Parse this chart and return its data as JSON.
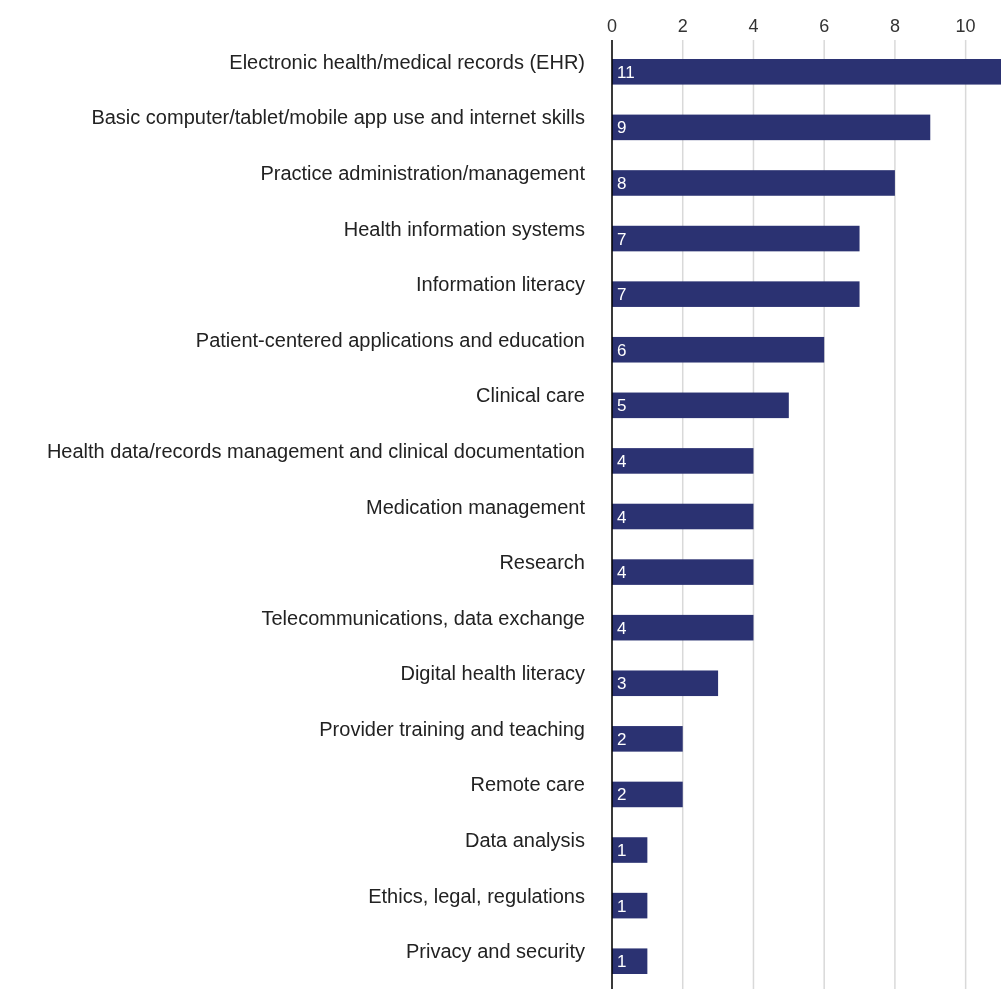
{
  "chart_data": {
    "type": "bar",
    "orientation": "horizontal",
    "categories": [
      "Electronic health/medical records (EHR)",
      "Basic computer/tablet/mobile app use and internet skills",
      "Practice administration/management",
      "Health information systems",
      "Information literacy",
      "Patient-centered applications and education",
      "Clinical care",
      "Health data/records management and clinical documentation",
      "Medication management",
      "Research",
      "Telecommunications, data exchange",
      "Digital health literacy",
      "Provider training and teaching",
      "Remote care",
      "Data analysis",
      "Ethics, legal, regulations",
      "Privacy and security"
    ],
    "values": [
      11,
      9,
      8,
      7,
      7,
      6,
      5,
      4,
      4,
      4,
      4,
      3,
      2,
      2,
      1,
      1,
      1
    ],
    "color": "#2b3272",
    "xlim": [
      0,
      11
    ],
    "xticks": [
      0,
      2,
      4,
      6,
      8,
      10
    ],
    "grid": "x",
    "data_labels": true
  }
}
